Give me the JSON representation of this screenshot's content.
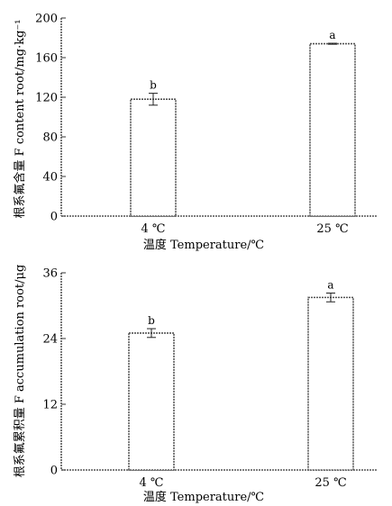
{
  "chart_data": [
    {
      "type": "bar",
      "categories": [
        "4 ℃",
        "25 ℃"
      ],
      "values": [
        118,
        174
      ],
      "errors": [
        6,
        0.5
      ],
      "significance": [
        "b",
        "a"
      ],
      "xlabel": "温度 Temperature/℃",
      "ylabel": "根系氟含量 F content root/mg·kg⁻¹",
      "ylim": [
        0,
        200
      ],
      "yticks": [
        0,
        40,
        80,
        120,
        160,
        200
      ],
      "yticklabels": [
        "0",
        "40",
        "80",
        "120",
        "160",
        "200"
      ],
      "bar_fill": "#ffffff",
      "bar_stroke": "#555555"
    },
    {
      "type": "bar",
      "categories": [
        "4 ℃",
        "25 ℃"
      ],
      "values": [
        25,
        31.5
      ],
      "errors": [
        0.8,
        0.8
      ],
      "significance": [
        "b",
        "a"
      ],
      "xlabel": "温度 Temperature/℃",
      "ylabel": "根系氟累积量 F accumulation root/μg",
      "ylim": [
        0,
        36
      ],
      "yticks": [
        0,
        12,
        24,
        36
      ],
      "yticklabels": [
        "0",
        "12",
        "24",
        "36"
      ],
      "bar_fill": "#ffffff",
      "bar_stroke": "#555555"
    }
  ]
}
